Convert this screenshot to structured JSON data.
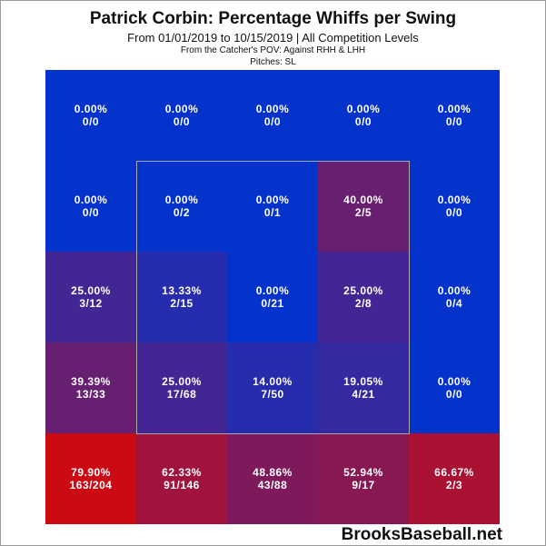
{
  "chart_data": {
    "type": "heatmap",
    "title": "Patrick Corbin: Percentage Whiffs per Swing",
    "subtitle": "From 01/01/2019 to 10/15/2019 | All Competition Levels",
    "notes": [
      "From the Catcher's POV:  Against RHH & LHH",
      "Pitches:  SL"
    ],
    "rows": [
      [
        {
          "pct": "0.00%",
          "ratio": "0/0",
          "value": 0.0
        },
        {
          "pct": "0.00%",
          "ratio": "0/0",
          "value": 0.0
        },
        {
          "pct": "0.00%",
          "ratio": "0/0",
          "value": 0.0
        },
        {
          "pct": "0.00%",
          "ratio": "0/0",
          "value": 0.0
        },
        {
          "pct": "0.00%",
          "ratio": "0/0",
          "value": 0.0
        }
      ],
      [
        {
          "pct": "0.00%",
          "ratio": "0/0",
          "value": 0.0
        },
        {
          "pct": "0.00%",
          "ratio": "0/2",
          "value": 0.0
        },
        {
          "pct": "0.00%",
          "ratio": "0/1",
          "value": 0.0
        },
        {
          "pct": "40.00%",
          "ratio": "2/5",
          "value": 40.0
        },
        {
          "pct": "0.00%",
          "ratio": "0/0",
          "value": 0.0
        }
      ],
      [
        {
          "pct": "25.00%",
          "ratio": "3/12",
          "value": 25.0
        },
        {
          "pct": "13.33%",
          "ratio": "2/15",
          "value": 13.33
        },
        {
          "pct": "0.00%",
          "ratio": "0/21",
          "value": 0.0
        },
        {
          "pct": "25.00%",
          "ratio": "2/8",
          "value": 25.0
        },
        {
          "pct": "0.00%",
          "ratio": "0/4",
          "value": 0.0
        }
      ],
      [
        {
          "pct": "39.39%",
          "ratio": "13/33",
          "value": 39.39
        },
        {
          "pct": "25.00%",
          "ratio": "17/68",
          "value": 25.0
        },
        {
          "pct": "14.00%",
          "ratio": "7/50",
          "value": 14.0
        },
        {
          "pct": "19.05%",
          "ratio": "4/21",
          "value": 19.05
        },
        {
          "pct": "0.00%",
          "ratio": "0/0",
          "value": 0.0
        }
      ],
      [
        {
          "pct": "79.90%",
          "ratio": "163/204",
          "value": 79.9
        },
        {
          "pct": "62.33%",
          "ratio": "91/146",
          "value": 62.33
        },
        {
          "pct": "48.86%",
          "ratio": "43/88",
          "value": 48.86
        },
        {
          "pct": "52.94%",
          "ratio": "9/17",
          "value": 52.94
        },
        {
          "pct": "66.67%",
          "ratio": "2/3",
          "value": 66.67
        }
      ]
    ],
    "colors": {
      "low": "#0433cc",
      "high": "#cc0a14"
    },
    "strike_zone": "inner 3x3 cells"
  },
  "brand": "BrooksBaseball.net"
}
